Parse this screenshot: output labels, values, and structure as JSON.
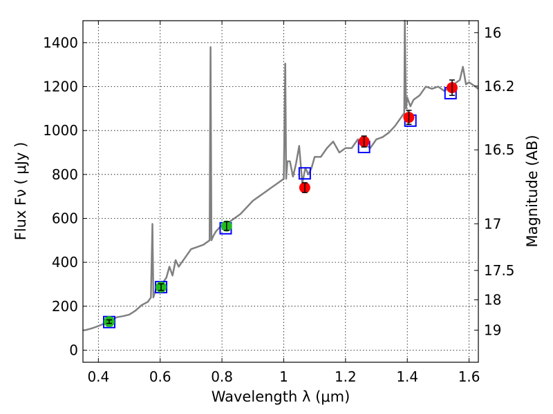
{
  "chart_data": {
    "type": "line",
    "xlabel": "Wavelength  λ (μm)",
    "ylabel": "Flux  Fν  ( μJy )",
    "ylabel_right": "Magnitude (AB)",
    "xlim": [
      0.35,
      1.63
    ],
    "ylim": [
      -55,
      1500
    ],
    "grid": true,
    "x_ticks": [
      0.4,
      0.6,
      0.8,
      1.0,
      1.2,
      1.4,
      1.6
    ],
    "x_tick_labels": [
      "0.4",
      "0.6",
      "0.8",
      "1",
      "1.2",
      "1.4",
      "1.6"
    ],
    "y_ticks": [
      0,
      200,
      400,
      600,
      800,
      1000,
      1200,
      1400
    ],
    "right_ticks": [
      16,
      16.2,
      16.5,
      17,
      17.5,
      18,
      19
    ],
    "right_tick_labels": [
      "16",
      "16.2",
      "16.5",
      "17",
      "17.5",
      "18",
      "19"
    ],
    "colors": {
      "spectrum": "#808080",
      "model": "#0000ff",
      "green": "#22bb22",
      "red": "#ff0000",
      "errorbar": "#000000"
    },
    "spectrum": {
      "x": [
        0.35,
        0.36,
        0.38,
        0.4,
        0.42,
        0.44,
        0.46,
        0.48,
        0.5,
        0.52,
        0.54,
        0.56,
        0.57,
        0.575,
        0.578,
        0.582,
        0.59,
        0.6,
        0.61,
        0.62,
        0.63,
        0.64,
        0.65,
        0.66,
        0.68,
        0.7,
        0.72,
        0.74,
        0.76,
        0.763,
        0.766,
        0.772,
        0.78,
        0.8,
        0.82,
        0.84,
        0.86,
        0.88,
        0.9,
        0.92,
        0.94,
        0.96,
        0.98,
        1.0,
        1.005,
        1.008,
        1.012,
        1.02,
        1.03,
        1.04,
        1.05,
        1.06,
        1.07,
        1.08,
        1.09,
        1.1,
        1.12,
        1.14,
        1.16,
        1.18,
        1.2,
        1.22,
        1.24,
        1.26,
        1.28,
        1.3,
        1.32,
        1.34,
        1.36,
        1.38,
        1.39,
        1.392,
        1.396,
        1.4,
        1.41,
        1.42,
        1.44,
        1.46,
        1.48,
        1.5,
        1.52,
        1.54,
        1.56,
        1.57,
        1.58,
        1.59,
        1.6,
        1.62,
        1.63
      ],
      "y": [
        90,
        92,
        100,
        110,
        122,
        135,
        150,
        155,
        162,
        180,
        205,
        220,
        240,
        575,
        240,
        260,
        290,
        300,
        310,
        330,
        380,
        340,
        410,
        380,
        420,
        460,
        470,
        480,
        500,
        1380,
        500,
        520,
        540,
        570,
        580,
        600,
        620,
        650,
        680,
        700,
        720,
        740,
        760,
        780,
        1305,
        780,
        860,
        860,
        790,
        850,
        930,
        760,
        830,
        800,
        830,
        880,
        880,
        920,
        950,
        900,
        920,
        920,
        960,
        940,
        920,
        960,
        970,
        990,
        1020,
        1060,
        1080,
        1500,
        1100,
        1150,
        1110,
        1140,
        1160,
        1200,
        1190,
        1200,
        1180,
        1200,
        1220,
        1230,
        1290,
        1210,
        1220,
        1200,
        1190
      ]
    },
    "model_points": [
      {
        "x": 0.435,
        "y": 128
      },
      {
        "x": 0.603,
        "y": 287
      },
      {
        "x": 0.812,
        "y": 555
      },
      {
        "x": 1.068,
        "y": 805
      },
      {
        "x": 1.26,
        "y": 925
      },
      {
        "x": 1.41,
        "y": 1045
      },
      {
        "x": 1.54,
        "y": 1170
      }
    ],
    "observed_points": [
      {
        "x": 0.435,
        "y": 130,
        "err": 8,
        "color": "green"
      },
      {
        "x": 0.603,
        "y": 287,
        "err": 15,
        "color": "green"
      },
      {
        "x": 0.815,
        "y": 565,
        "err": 20,
        "color": "green"
      },
      {
        "x": 1.068,
        "y": 740,
        "err": 22,
        "color": "red"
      },
      {
        "x": 1.26,
        "y": 950,
        "err": 25,
        "color": "red"
      },
      {
        "x": 1.405,
        "y": 1060,
        "err": 32,
        "color": "red"
      },
      {
        "x": 1.545,
        "y": 1195,
        "err": 35,
        "color": "red"
      }
    ]
  }
}
